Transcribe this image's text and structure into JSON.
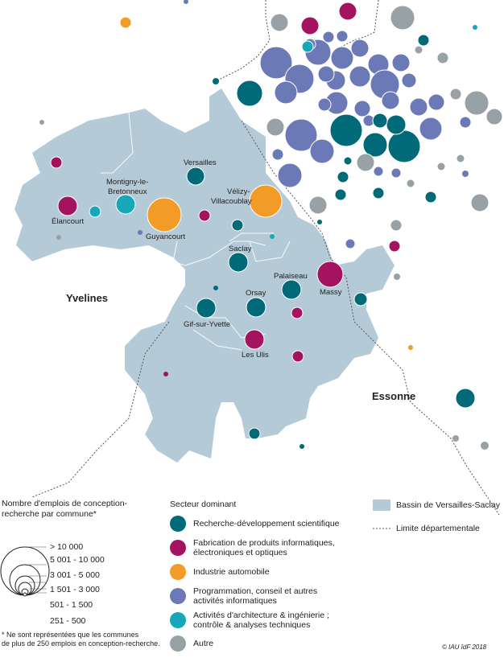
{
  "departments": {
    "yvelines": "Yvelines",
    "essonne": "Essonne"
  },
  "communes": [
    {
      "name": "Versailles"
    },
    {
      "name": "Montigny-le-"
    },
    {
      "name": "Bretonneux"
    },
    {
      "name": "Vélizy-"
    },
    {
      "name": "Villacoublay"
    },
    {
      "name": "Élancourt"
    },
    {
      "name": "Guyancourt"
    },
    {
      "name": "Saclay"
    },
    {
      "name": "Palaiseau"
    },
    {
      "name": "Massy"
    },
    {
      "name": "Orsay"
    },
    {
      "name": "Gif-sur-Yvette"
    },
    {
      "name": "Les Ulis"
    }
  ],
  "colors": {
    "rd": "#006a78",
    "fab": "#a3135f",
    "auto": "#f29b26",
    "prog": "#6c79b7",
    "archi": "#16a7b9",
    "autre": "#98a2a6",
    "bassin": "#b4cad6"
  },
  "legend": {
    "size_title_line1": "Nombre d'emplois de conception-",
    "size_title_line2": "recherche par commune*",
    "sizes": [
      "> 10 000",
      "5 001 - 10 000",
      "3 001 - 5 000",
      "1 501 - 3 000",
      "501 - 1 500",
      "251 - 500"
    ],
    "note_line1": "* Ne sont représentées que les communes",
    "note_line2": "de plus de 250 emplois en conception-recherche.",
    "sector_title": "Secteur dominant",
    "sectors": {
      "rd": "Recherche-développement scientifique",
      "fab_1": "Fabrication de produits informatiques,",
      "fab_2": "électroniques et optiques",
      "auto": "Industrie automobile",
      "prog_1": "Programmation, conseil et autres",
      "prog_2": "activités informatiques",
      "archi_1": "Activités d'architecture & ingénierie ;",
      "archi_2": "contrôle & analyses techniques",
      "autre": "Autre"
    },
    "bassin": "Bassin de Versailles-Saclay",
    "limite": "Limite départementale"
  },
  "credit": "© IAU îdF 2018"
}
